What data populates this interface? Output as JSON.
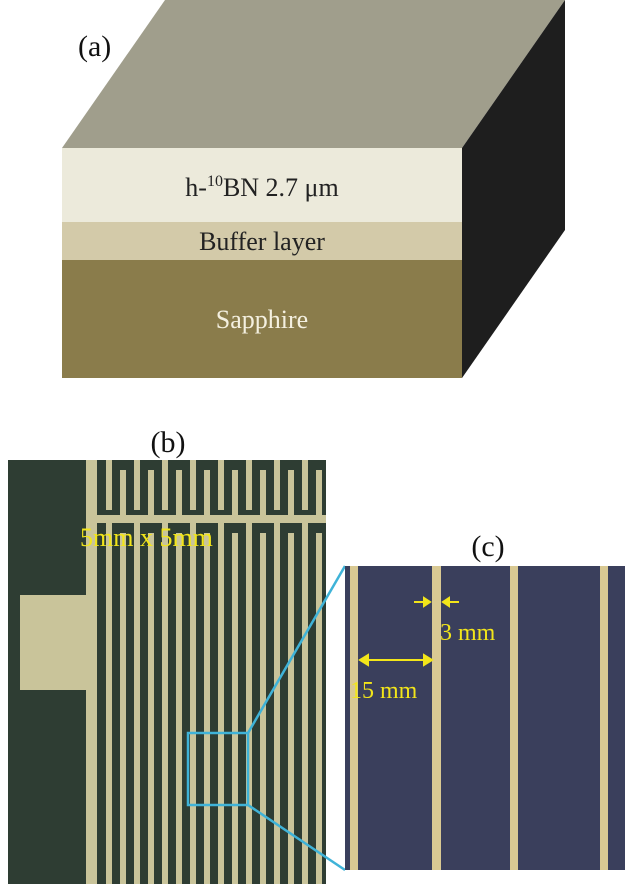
{
  "panel_a": {
    "label": "(a)",
    "layers": [
      {
        "prefix": "h-",
        "superscript": "10",
        "rest": "BN 2.7 μm"
      },
      {
        "text": "Buffer layer"
      },
      {
        "text": "Sapphire"
      }
    ]
  },
  "panel_b": {
    "label": "(b)",
    "annotation": "5mm x 5mm"
  },
  "panel_c": {
    "label": "(c)",
    "annotations": [
      "3 mm",
      "15 mm"
    ]
  }
}
